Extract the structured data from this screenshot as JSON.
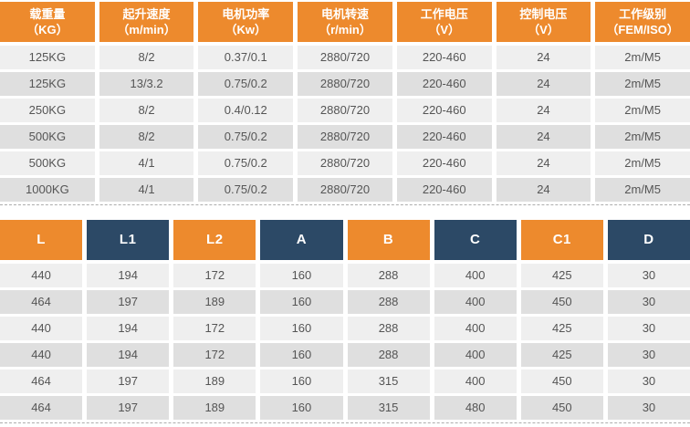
{
  "colors": {
    "header_orange": "#ED8A2D",
    "header_navy": "#2C4966",
    "row_light": "#EFEFEF",
    "row_dark": "#DFDFDF",
    "cell_text": "#555555",
    "header_text": "#FFFFFF",
    "divider_dash": "#ADADAD"
  },
  "spec_table": {
    "headers": [
      {
        "title": "载重量",
        "unit": "（KG）"
      },
      {
        "title": "起升速度",
        "unit": "（m/min）"
      },
      {
        "title": "电机功率",
        "unit": "（Kw）"
      },
      {
        "title": "电机转速",
        "unit": "（r/min）"
      },
      {
        "title": "工作电压",
        "unit": "（V）"
      },
      {
        "title": "控制电压",
        "unit": "（V）"
      },
      {
        "title": "工作级别",
        "unit": "（FEM/ISO）"
      }
    ],
    "rows": [
      [
        "125KG",
        "8/2",
        "0.37/0.1",
        "2880/720",
        "220-460",
        "24",
        "2m/M5"
      ],
      [
        "125KG",
        "13/3.2",
        "0.75/0.2",
        "2880/720",
        "220-460",
        "24",
        "2m/M5"
      ],
      [
        "250KG",
        "8/2",
        "0.4/0.12",
        "2880/720",
        "220-460",
        "24",
        "2m/M5"
      ],
      [
        "500KG",
        "8/2",
        "0.75/0.2",
        "2880/720",
        "220-460",
        "24",
        "2m/M5"
      ],
      [
        "500KG",
        "4/1",
        "0.75/0.2",
        "2880/720",
        "220-460",
        "24",
        "2m/M5"
      ],
      [
        "1000KG",
        "4/1",
        "0.75/0.2",
        "2880/720",
        "220-460",
        "24",
        "2m/M5"
      ]
    ]
  },
  "dimension_table": {
    "headers": [
      "L",
      "L1",
      "L2",
      "A",
      "B",
      "C",
      "C1",
      "D"
    ],
    "rows": [
      [
        "440",
        "194",
        "172",
        "160",
        "288",
        "400",
        "425",
        "30"
      ],
      [
        "464",
        "197",
        "189",
        "160",
        "288",
        "400",
        "450",
        "30"
      ],
      [
        "440",
        "194",
        "172",
        "160",
        "288",
        "400",
        "425",
        "30"
      ],
      [
        "440",
        "194",
        "172",
        "160",
        "288",
        "400",
        "425",
        "30"
      ],
      [
        "464",
        "197",
        "189",
        "160",
        "315",
        "400",
        "450",
        "30"
      ],
      [
        "464",
        "197",
        "189",
        "160",
        "315",
        "480",
        "450",
        "30"
      ]
    ]
  }
}
